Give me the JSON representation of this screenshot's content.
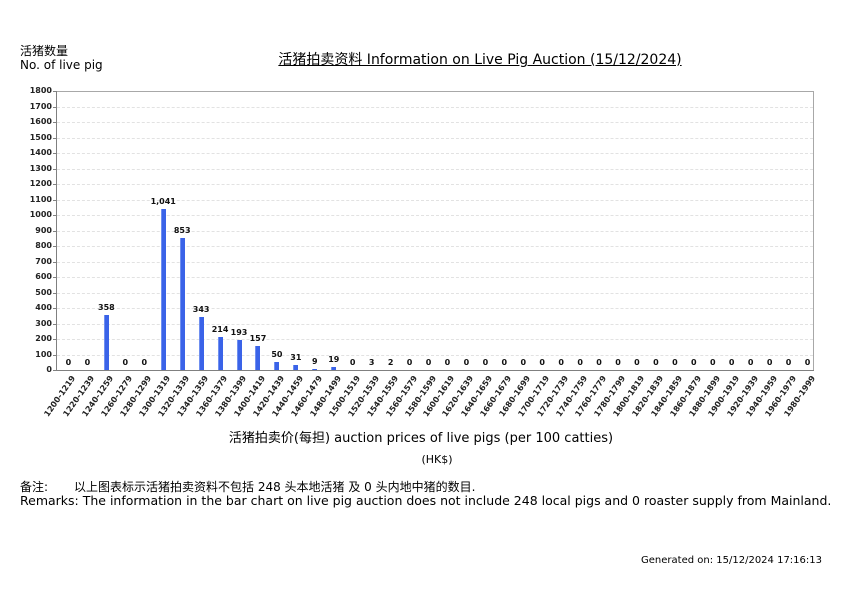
{
  "header": {
    "ylabel_zh": "活猪数量",
    "ylabel_en": "No. of live pig",
    "title": "活猪拍卖资料 Information on Live Pig Auction (15/12/2024)"
  },
  "axis": {
    "xtitle": "活猪拍卖价(每担) auction prices of live pigs (per 100 catties)",
    "xunit": "(HK$)"
  },
  "remarks": {
    "zh_label": "备注:",
    "zh_text": "以上图表标示活猪拍卖资料不包括 248 头本地活猪 及 0 头内地中猪的数目.",
    "en_text": "Remarks: The information in the bar chart on live pig auction does not include 248 local pigs and 0 roaster supply from Mainland."
  },
  "footer": {
    "generated": "Generated on: 15/12/2024 17:16:13"
  },
  "colors": {
    "bar": "#3a63e8",
    "grid": "#e2e2e2",
    "axis": "#808080"
  },
  "chart_data": {
    "type": "bar",
    "title": "活猪拍卖资料 Information on Live Pig Auction (15/12/2024)",
    "xlabel": "活猪拍卖价(每担) auction prices of live pigs (per 100 catties) (HK$)",
    "ylabel": "活猪数量 No. of live pig",
    "ylim": [
      0,
      1800
    ],
    "yticks": [
      0,
      100,
      200,
      300,
      400,
      500,
      600,
      700,
      800,
      900,
      1000,
      1100,
      1200,
      1300,
      1400,
      1500,
      1600,
      1700,
      1800
    ],
    "grid": true,
    "legend": null,
    "categories": [
      "1200-1219",
      "1220-1239",
      "1240-1259",
      "1260-1279",
      "1280-1299",
      "1300-1319",
      "1320-1339",
      "1340-1359",
      "1360-1379",
      "1380-1399",
      "1400-1419",
      "1420-1439",
      "1440-1459",
      "1460-1479",
      "1480-1499",
      "1500-1519",
      "1520-1539",
      "1540-1559",
      "1560-1579",
      "1580-1599",
      "1600-1619",
      "1620-1639",
      "1640-1659",
      "1660-1679",
      "1680-1699",
      "1700-1719",
      "1720-1739",
      "1740-1759",
      "1760-1779",
      "1780-1799",
      "1800-1819",
      "1820-1839",
      "1840-1859",
      "1860-1879",
      "1880-1899",
      "1900-1919",
      "1920-1939",
      "1940-1959",
      "1960-1979",
      "1980-1999"
    ],
    "values": [
      0,
      0,
      358,
      0,
      0,
      1041,
      853,
      343,
      214,
      193,
      157,
      50,
      31,
      9,
      19,
      0,
      3,
      2,
      0,
      0,
      0,
      0,
      0,
      0,
      0,
      0,
      0,
      0,
      0,
      0,
      0,
      0,
      0,
      0,
      0,
      0,
      0,
      0,
      0,
      0
    ],
    "value_labels": [
      "0",
      "0",
      "358",
      "0",
      "0",
      "1,041",
      "853",
      "343",
      "214",
      "193",
      "157",
      "50",
      "31",
      "9",
      "19",
      "0",
      "3",
      "2",
      "0",
      "0",
      "0",
      "0",
      "0",
      "0",
      "0",
      "0",
      "0",
      "0",
      "0",
      "0",
      "0",
      "0",
      "0",
      "0",
      "0",
      "0",
      "0",
      "0",
      "0",
      "0"
    ]
  }
}
